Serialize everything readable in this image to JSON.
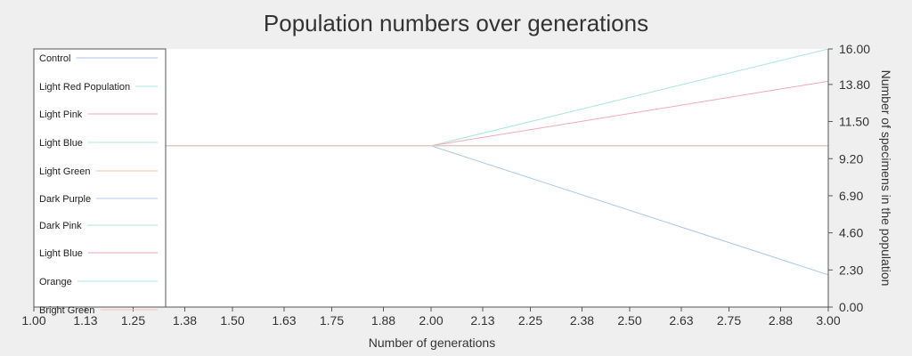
{
  "chart_data": {
    "type": "line",
    "title": "Population numbers over generations",
    "xlabel": "Number of generations",
    "ylabel": "Number of specimens in the population",
    "xlim": [
      1.0,
      3.0
    ],
    "ylim": [
      0.0,
      16.0
    ],
    "x_ticks": [
      "1.00",
      "1.13",
      "1.25",
      "1.38",
      "1.50",
      "1.63",
      "1.75",
      "1.88",
      "2.00",
      "2.13",
      "2.25",
      "2.38",
      "2.50",
      "2.63",
      "2.75",
      "2.88",
      "3.00"
    ],
    "y_ticks": [
      "0.00",
      "2.30",
      "4.60",
      "6.90",
      "9.20",
      "11.50",
      "13.80",
      "16.00"
    ],
    "x": [
      1,
      2,
      3
    ],
    "series": [
      {
        "name": "Control",
        "values": [
          10,
          10,
          2
        ],
        "color": "#a9c6ea"
      },
      {
        "name": "Light Red Population",
        "values": [
          10,
          10,
          16
        ],
        "color": "#a8e6dc"
      },
      {
        "name": "Light Pink",
        "values": [
          10,
          10,
          14
        ],
        "color": "#f2a9b8"
      },
      {
        "name": "Light Blue",
        "values": [
          10,
          10,
          10
        ],
        "color": "#a8e8ec"
      },
      {
        "name": "Light Green",
        "values": [
          10,
          10,
          10
        ],
        "color": "#f5c2b2"
      },
      {
        "name": "Dark Purple",
        "values": [
          10,
          10,
          10
        ],
        "color": "#b3cbe6"
      },
      {
        "name": "Dark Pink",
        "values": [
          10,
          10,
          10
        ],
        "color": "#b2e4d8"
      },
      {
        "name": "Light Blue",
        "values": [
          10,
          10,
          10
        ],
        "color": "#f0a6b6"
      },
      {
        "name": "Orange",
        "values": [
          10,
          10,
          10
        ],
        "color": "#a9e7ea"
      },
      {
        "name": "Bright Green",
        "values": [
          10,
          10,
          10
        ],
        "color": "#f6c6b4"
      }
    ],
    "legend": "top-left",
    "grid": false
  }
}
